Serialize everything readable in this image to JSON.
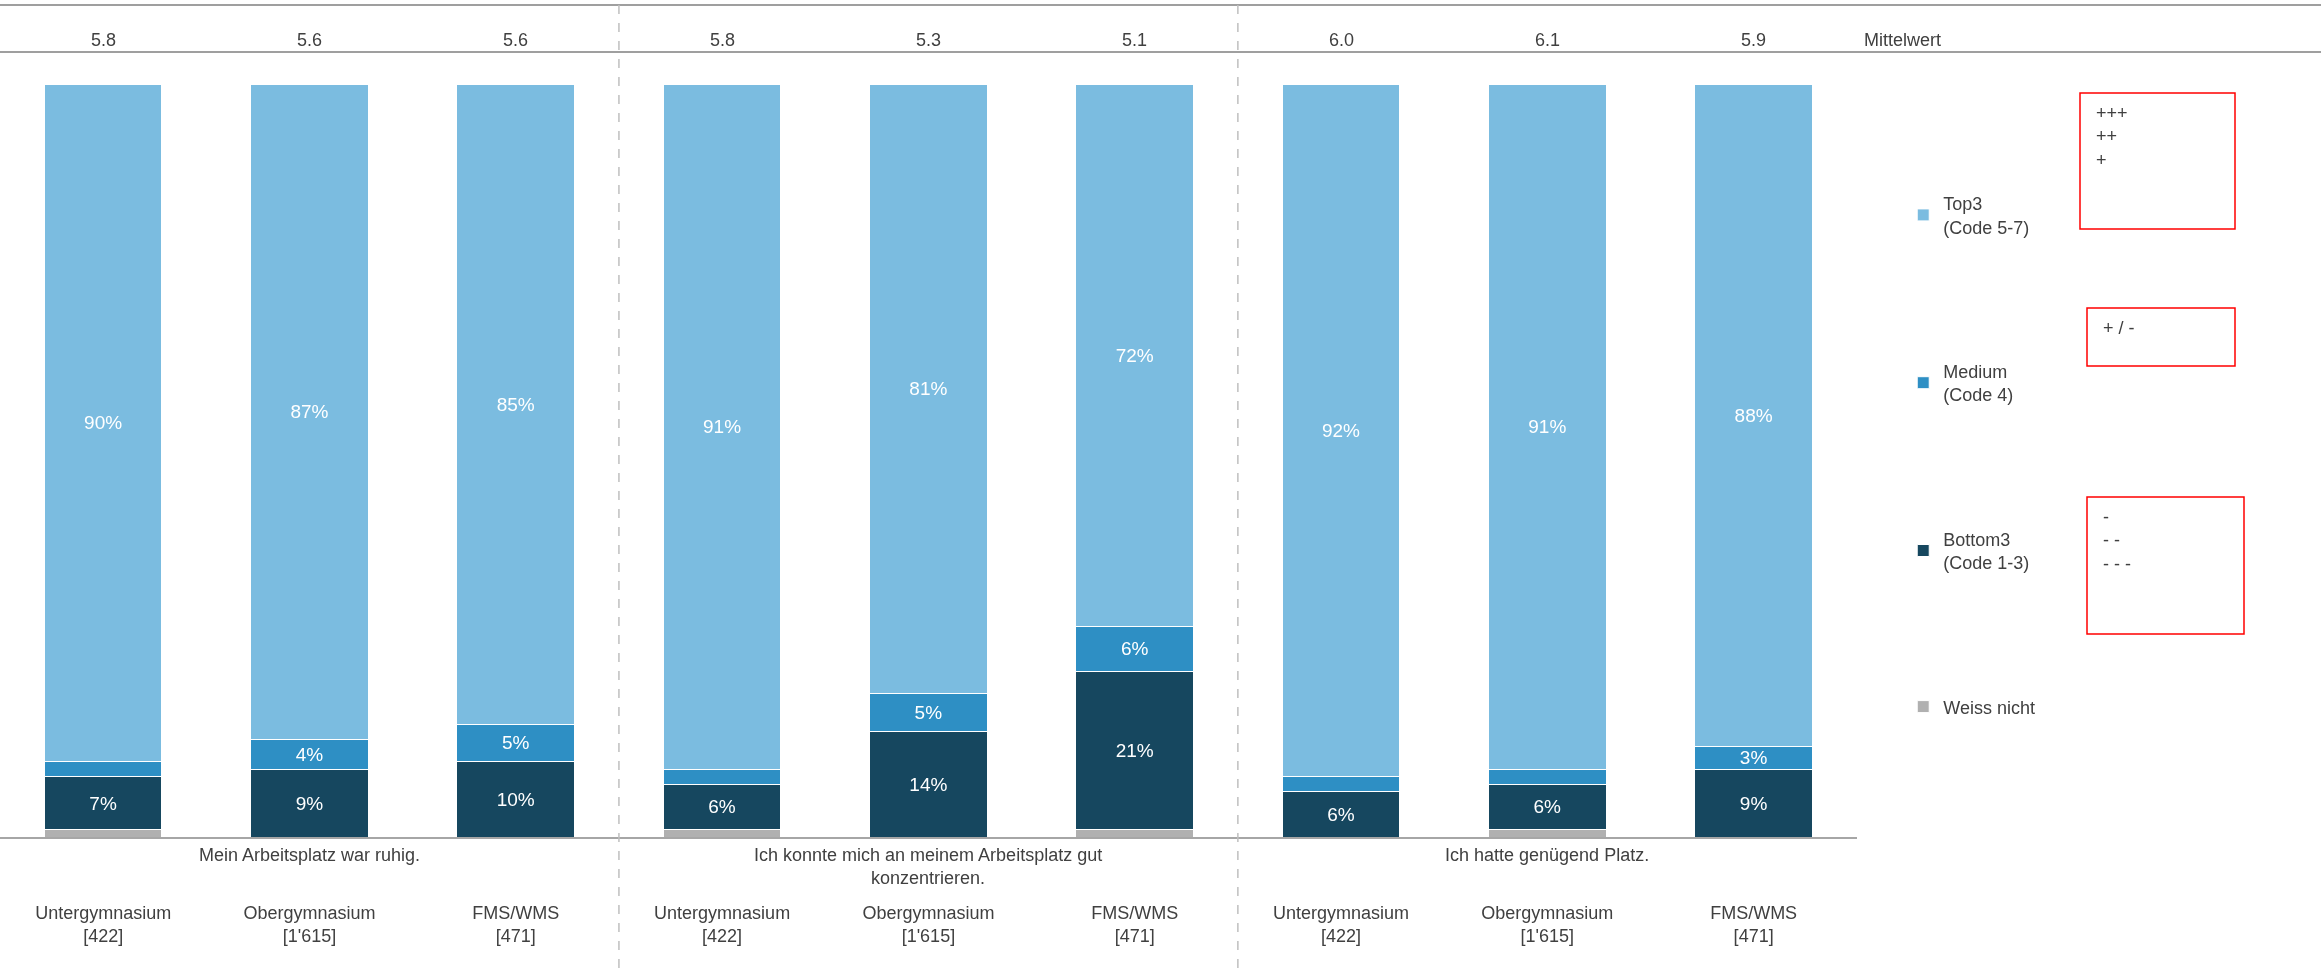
{
  "chart_data": {
    "type": "bar",
    "stacked": true,
    "data_labels": false,
    "legend": "right",
    "categories": [
      "Untergymnasium\n[422]",
      "Obergymnasium\n[1'615]",
      "FMS/WMS\n[471]",
      "Untergymnasium\n[422]",
      "Obergymnasium\n[1'615]",
      "FMS/WMS\n[471]",
      "Untergymnasium\n[422]",
      "Obergymnasium\n[1'615]",
      "FMS/WMS\n[471]"
    ],
    "series": [
      {
        "name": "Weiss nicht",
        "color": "#b0b0b0",
        "values": [
          1,
          0,
          0,
          1,
          0,
          1,
          0,
          1,
          0
        ],
        "value_labels": [
          null,
          null,
          null,
          null,
          null,
          null,
          null,
          null,
          null
        ]
      },
      {
        "name": "Bottom3\n(Code 1-3)",
        "color": "#16475f",
        "values": [
          7,
          9,
          10,
          6,
          14,
          21,
          6,
          6,
          9
        ],
        "value_labels": [
          "7%",
          "9%",
          "10%",
          "6%",
          "14%",
          "21%",
          "6%",
          "6%",
          "9%"
        ]
      },
      {
        "name": "Medium\n(Code 4)",
        "color": "#2e8fc4",
        "values": [
          2,
          4,
          5,
          2,
          5,
          6,
          2,
          2,
          3
        ],
        "value_labels": [
          null,
          "4%",
          "5%",
          null,
          "5%",
          "6%",
          null,
          null,
          "3%"
        ]
      },
      {
        "name": "Top3\n(Code 5-7)",
        "color": "#7bbce0",
        "values": [
          90,
          87,
          85,
          91,
          81,
          72,
          92,
          91,
          88
        ],
        "value_labels": [
          "90%",
          "87%",
          "85%",
          "91%",
          "81%",
          "72%",
          "92%",
          "91%",
          "88%"
        ]
      }
    ],
    "annotations": [
      "5.8",
      "5.6",
      "5.6",
      "5.8",
      "5.3",
      "5.1",
      "6.0",
      "6.1",
      "5.9",
      "Mittelwert",
      "Mein Arbeitsplatz war ruhig.",
      "Ich konnte mich an meinem Arbeitsplatz gut\nkonzentrieren.",
      "Ich hatte genügend Platz.",
      "+++\n++\n+",
      "+ / -",
      "-\n- -\n- - -"
    ]
  }
}
